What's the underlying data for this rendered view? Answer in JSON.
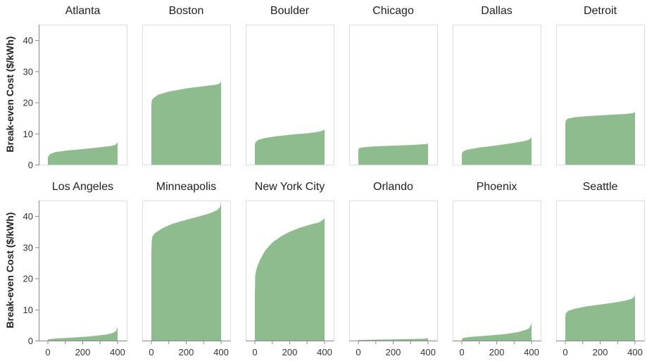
{
  "colors": {
    "area": "#8fbc8f",
    "frame": "#dddddd",
    "axis": "#888888",
    "text": "#222222"
  },
  "chart_data": {
    "type": "area",
    "ylabel": "Break-even Cost ($/kWh)",
    "xlim": [
      0,
      400
    ],
    "ylim": [
      0,
      45
    ],
    "x_ticks": [
      0,
      200,
      400
    ],
    "x_minor_ticks": [
      100,
      300
    ],
    "y_ticks": [
      0,
      10,
      20,
      30,
      40
    ],
    "grid": false,
    "panels": [
      {
        "title": "Atlanta",
        "x": [
          0,
          10,
          40,
          100,
          200,
          300,
          360,
          385,
          395,
          400
        ],
        "y": [
          2.4,
          3.3,
          4.0,
          4.5,
          5.0,
          5.6,
          6.0,
          6.3,
          6.8,
          7.3
        ]
      },
      {
        "title": "Boston",
        "x": [
          0,
          2,
          6,
          15,
          40,
          100,
          200,
          300,
          370,
          392,
          400
        ],
        "y": [
          19.0,
          20.5,
          21.0,
          21.5,
          22.5,
          23.5,
          24.5,
          25.2,
          25.7,
          26.0,
          27.0
        ]
      },
      {
        "title": "Boulder",
        "x": [
          0,
          5,
          20,
          60,
          120,
          200,
          300,
          370,
          392,
          400
        ],
        "y": [
          6.5,
          7.3,
          8.0,
          8.6,
          9.1,
          9.6,
          10.1,
          10.6,
          11.0,
          11.4
        ]
      },
      {
        "title": "Chicago",
        "x": [
          0,
          5,
          30,
          100,
          200,
          300,
          390,
          400
        ],
        "y": [
          5.0,
          5.3,
          5.6,
          5.9,
          6.1,
          6.3,
          6.6,
          6.8
        ]
      },
      {
        "title": "Dallas",
        "x": [
          0,
          8,
          30,
          100,
          200,
          300,
          360,
          385,
          395,
          400
        ],
        "y": [
          3.5,
          4.3,
          4.8,
          5.5,
          6.2,
          7.0,
          7.6,
          8.0,
          8.5,
          9.0
        ]
      },
      {
        "title": "Detroit",
        "x": [
          0,
          3,
          15,
          60,
          150,
          250,
          350,
          390,
          400
        ],
        "y": [
          13.0,
          14.3,
          14.8,
          15.3,
          15.7,
          16.0,
          16.3,
          16.6,
          17.0
        ]
      },
      {
        "title": "Los Angeles",
        "x": [
          0,
          50,
          150,
          250,
          330,
          370,
          390,
          398,
          400
        ],
        "y": [
          0.4,
          0.7,
          1.0,
          1.4,
          1.9,
          2.4,
          3.0,
          4.0,
          4.3
        ]
      },
      {
        "title": "Minneapolis",
        "x": [
          0,
          2,
          6,
          20,
          60,
          120,
          200,
          280,
          340,
          380,
          395,
          400
        ],
        "y": [
          28.0,
          32.0,
          33.5,
          34.5,
          36.0,
          37.5,
          38.8,
          40.0,
          41.0,
          42.0,
          43.0,
          45.0
        ]
      },
      {
        "title": "New York City",
        "x": [
          0,
          2,
          5,
          15,
          30,
          60,
          100,
          150,
          200,
          260,
          320,
          370,
          395,
          400
        ],
        "y": [
          15.0,
          21.0,
          22.0,
          24.0,
          26.0,
          29.0,
          31.5,
          33.5,
          35.0,
          36.3,
          37.3,
          38.0,
          39.0,
          39.5
        ]
      },
      {
        "title": "Orlando",
        "x": [
          0,
          100,
          200,
          300,
          380,
          400
        ],
        "y": [
          0.2,
          0.3,
          0.4,
          0.5,
          0.6,
          0.8
        ]
      },
      {
        "title": "Phoenix",
        "x": [
          0,
          10,
          50,
          150,
          250,
          320,
          360,
          385,
          396,
          400
        ],
        "y": [
          0.5,
          0.9,
          1.2,
          1.6,
          2.1,
          2.7,
          3.3,
          3.9,
          5.0,
          5.8
        ]
      },
      {
        "title": "Seattle",
        "x": [
          0,
          3,
          15,
          50,
          120,
          200,
          280,
          340,
          380,
          395,
          400
        ],
        "y": [
          7.5,
          8.8,
          9.5,
          10.2,
          11.0,
          11.6,
          12.2,
          12.8,
          13.4,
          14.0,
          14.8
        ]
      }
    ]
  }
}
